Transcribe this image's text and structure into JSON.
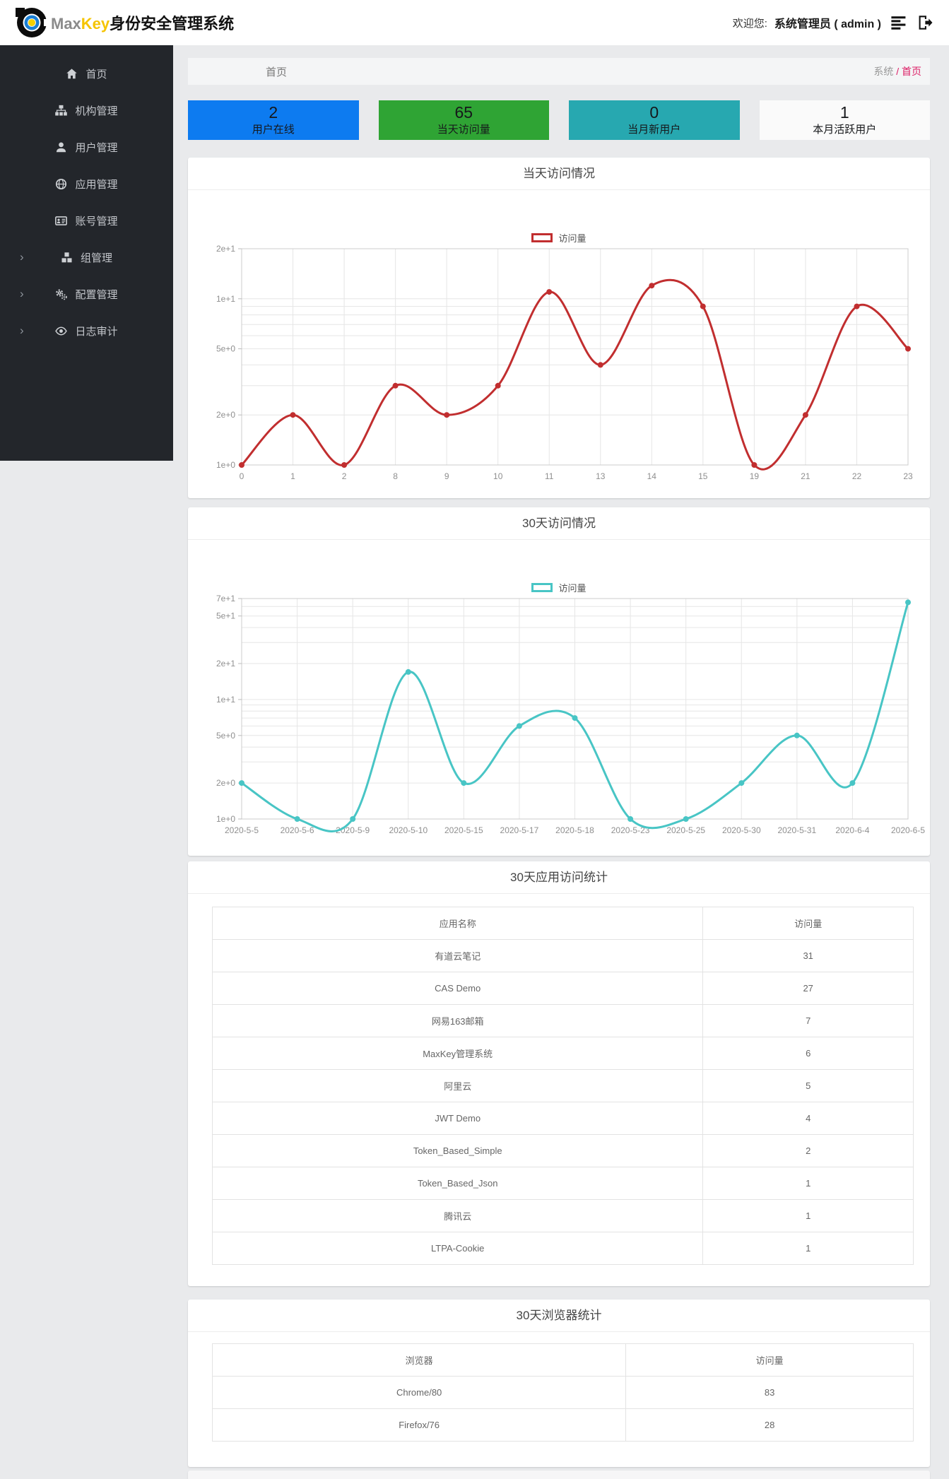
{
  "header": {
    "brand_max": "Max",
    "brand_key": "Key",
    "brand_suffix": "身份安全管理系统",
    "welcome_label": "欢迎您:",
    "user": "系统管理员 ( admin )",
    "icons": [
      "list-menu-icon",
      "sign-out-icon"
    ]
  },
  "sidebar": {
    "items": [
      {
        "label": "首页",
        "icon": "home-icon",
        "expandable": false
      },
      {
        "label": "机构管理",
        "icon": "sitemap-icon",
        "expandable": false
      },
      {
        "label": "用户管理",
        "icon": "user-icon",
        "expandable": false
      },
      {
        "label": "应用管理",
        "icon": "globe-icon",
        "expandable": false
      },
      {
        "label": "账号管理",
        "icon": "id-card-icon",
        "expandable": false
      },
      {
        "label": "组管理",
        "icon": "cubes-icon",
        "expandable": true
      },
      {
        "label": "配置管理",
        "icon": "gears-icon",
        "expandable": true
      },
      {
        "label": "日志审计",
        "icon": "eye-icon",
        "expandable": true
      }
    ]
  },
  "breadcrumb": {
    "page_title": "首页",
    "section": "系统",
    "separator": "/",
    "current": "首页",
    "link_color": "#dd2067"
  },
  "stats": [
    {
      "value": "2",
      "label": "用户在线",
      "color": "#0d7bf0"
    },
    {
      "value": "65",
      "label": "当天访问量",
      "color": "#2fa434"
    },
    {
      "value": "0",
      "label": "当月新用户",
      "color": "#27a8b0"
    },
    {
      "value": "1",
      "label": "本月活跃用户",
      "color": "#fafafa"
    }
  ],
  "chart_data": [
    {
      "type": "line",
      "title": "当天访问情况",
      "legend": "访问量",
      "legend_position": "top-center",
      "color": "#c12e2f",
      "smooth": true,
      "grid": true,
      "yscale": "log",
      "ylim": [
        1,
        20
      ],
      "categories": [
        "0",
        "1",
        "2",
        "8",
        "9",
        "10",
        "11",
        "13",
        "14",
        "15",
        "19",
        "21",
        "22",
        "23"
      ],
      "values": [
        1,
        2,
        1,
        3,
        2,
        3,
        11,
        4,
        12,
        9,
        1,
        2,
        9,
        5
      ],
      "grid_values": [
        1,
        2,
        3,
        4,
        5,
        6,
        7,
        8,
        9,
        10,
        20
      ],
      "ytick_labels": {
        "1": "1e+0",
        "2": "2e+0",
        "5": "5e+0",
        "10": "1e+1",
        "20": "2e+1"
      }
    },
    {
      "type": "line",
      "title": "30天访问情况",
      "legend": "访问量",
      "legend_position": "top-center",
      "color": "#48c5c5",
      "smooth": true,
      "grid": true,
      "yscale": "log",
      "ylim": [
        1,
        70
      ],
      "categories": [
        "2020-5-5",
        "2020-5-6",
        "2020-5-9",
        "2020-5-10",
        "2020-5-15",
        "2020-5-17",
        "2020-5-18",
        "2020-5-23",
        "2020-5-25",
        "2020-5-30",
        "2020-5-31",
        "2020-6-4",
        "2020-6-5"
      ],
      "values": [
        2,
        1,
        1,
        17,
        2,
        6,
        7,
        1,
        1,
        2,
        5,
        2,
        65
      ],
      "grid_values": [
        1,
        2,
        3,
        4,
        5,
        6,
        7,
        8,
        9,
        10,
        20,
        30,
        40,
        50,
        60,
        70
      ],
      "ytick_labels": {
        "1": "1e+0",
        "2": "2e+0",
        "5": "5e+0",
        "10": "1e+1",
        "20": "2e+1",
        "50": "5e+1",
        "70": "7e+1"
      }
    }
  ],
  "tables": [
    {
      "title": "30天应用访问统计",
      "headers": [
        "应用名称",
        "访问量"
      ],
      "rows": [
        [
          "有道云笔记",
          "31"
        ],
        [
          "CAS Demo",
          "27"
        ],
        [
          "网易163邮箱",
          "7"
        ],
        [
          "MaxKey管理系统",
          "6"
        ],
        [
          "阿里云",
          "5"
        ],
        [
          "JWT Demo",
          "4"
        ],
        [
          "Token_Based_Simple",
          "2"
        ],
        [
          "Token_Based_Json",
          "1"
        ],
        [
          "腾讯云",
          "1"
        ],
        [
          "LTPA-Cookie",
          "1"
        ]
      ]
    },
    {
      "title": "30天浏览器统计",
      "headers": [
        "浏览器",
        "访问量"
      ],
      "rows": [
        [
          "Chrome/80",
          "83"
        ],
        [
          "Firefox/76",
          "28"
        ]
      ]
    }
  ]
}
